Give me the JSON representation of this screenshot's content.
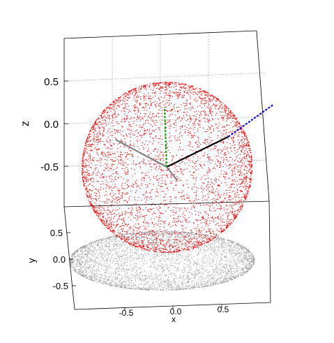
{
  "chart_data": {
    "type": "scatter",
    "projection": "3d",
    "title": "",
    "axes": {
      "x": {
        "label": "x",
        "ticks": [
          "-0.5",
          "0.0",
          "0.5"
        ],
        "range": [
          -1,
          1
        ]
      },
      "y": {
        "label": "y",
        "ticks": [
          "0.5",
          "0.0",
          "-0.5"
        ],
        "range": [
          -1,
          1
        ]
      },
      "z": {
        "label": "z",
        "ticks": [
          "0.5",
          "0.0",
          "-0.5"
        ],
        "range": [
          -1,
          1
        ]
      }
    },
    "grid": true,
    "series": [
      {
        "kind": "points",
        "shape": "unit sphere surface",
        "radius": 1,
        "color": "#ff0000"
      },
      {
        "kind": "points",
        "shape": "projection of sphere onto floor (z = -1)",
        "color": "#9a9a9a"
      }
    ],
    "vectors": [
      {
        "color": "#000000",
        "style": "solid",
        "from": [
          0,
          0,
          0
        ],
        "to": [
          0.55,
          0.55,
          0.45
        ]
      },
      {
        "color": "#808080",
        "style": "solid",
        "from": [
          0,
          0,
          0
        ],
        "to": [
          -0.5,
          -0.35,
          0.3
        ]
      },
      {
        "color": "#808080",
        "style": "solid",
        "from": [
          0,
          0,
          0
        ],
        "to": [
          0.45,
          -0.7,
          -0.4
        ]
      },
      {
        "color": "#00b000",
        "style": "dashed",
        "from": [
          0,
          0,
          0
        ],
        "to": [
          -0.05,
          0.05,
          0.75
        ]
      },
      {
        "color": "#0000ff",
        "style": "dashed",
        "from": [
          0.55,
          0.55,
          0.45
        ],
        "to": [
          0.95,
          0.95,
          0.9
        ]
      }
    ]
  }
}
